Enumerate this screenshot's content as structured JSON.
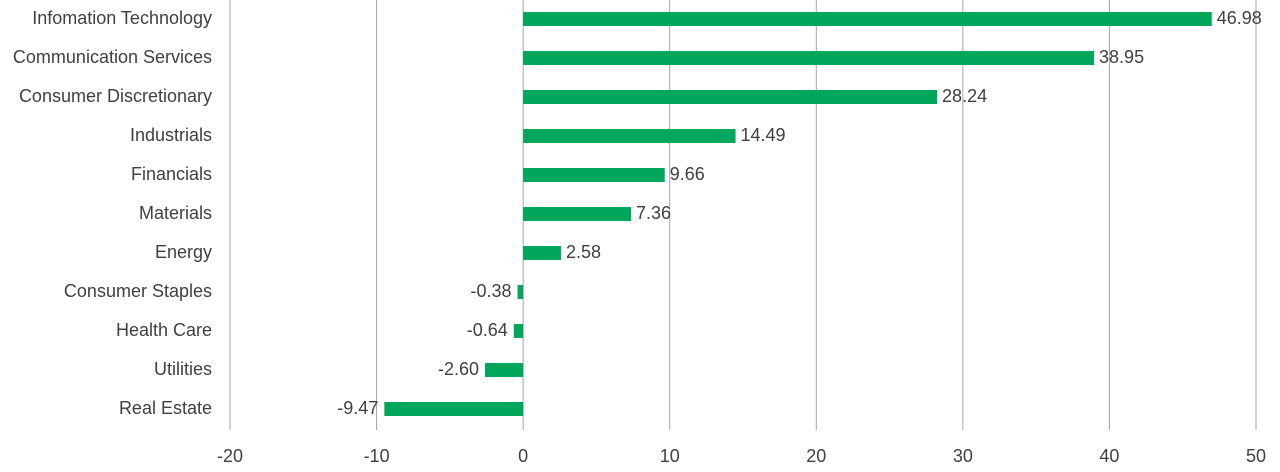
{
  "chart_data": {
    "type": "bar",
    "orientation": "horizontal",
    "title": "",
    "xlabel": "",
    "ylabel": "",
    "categories": [
      "Infomation Technology",
      "Communication Services",
      "Consumer Discretionary",
      "Industrials",
      "Financials",
      "Materials",
      "Energy",
      "Consumer Staples",
      "Health Care",
      "Utilities",
      "Real Estate"
    ],
    "values": [
      46.98,
      38.95,
      28.24,
      14.49,
      9.66,
      7.36,
      2.58,
      -0.38,
      -0.64,
      -2.6,
      -9.47
    ],
    "value_labels": [
      "46.98",
      "38.95",
      "28.24",
      "14.49",
      "9.66",
      "7.36",
      "2.58",
      "-0.38",
      "-0.64",
      "-2.60",
      "-9.47"
    ],
    "xlim": [
      -20,
      50
    ],
    "ticks": [
      -20,
      -10,
      0,
      10,
      20,
      30,
      40,
      50
    ],
    "tick_labels": [
      "-20",
      "-10",
      "0",
      "10",
      "20",
      "30",
      "40",
      "50"
    ],
    "grid": "vertical",
    "legend": "none",
    "colors": {
      "bar": "#00a65a",
      "grid": "#a6a6a6",
      "text": "#404040"
    }
  }
}
